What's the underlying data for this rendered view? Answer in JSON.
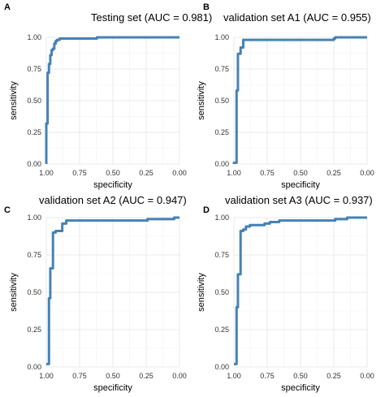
{
  "figure": {
    "background": "#ffffff",
    "line_color": "#4682b4",
    "grid_color": "#e4e4e4"
  },
  "chart_data": [
    {
      "type": "line",
      "panel": "A",
      "title": "Testing set (AUC = 0.981)",
      "xlabel": "specificity",
      "ylabel": "sensitivity",
      "x_reversed": true,
      "xlim": [
        1.0,
        0.0
      ],
      "ylim": [
        0.0,
        1.0
      ],
      "xticks": [
        "1.00",
        "0.75",
        "0.50",
        "0.25",
        "0.00"
      ],
      "yticks": [
        "0.00",
        "0.25",
        "0.50",
        "0.75",
        "1.00"
      ],
      "grid": true,
      "series": [
        {
          "x": [
            1.0,
            1.0,
            0.99,
            0.99,
            0.98,
            0.98,
            0.97,
            0.97,
            0.96,
            0.96,
            0.95,
            0.95,
            0.94,
            0.94,
            0.93,
            0.93,
            0.92,
            0.92,
            0.9,
            0.9,
            0.62,
            0.62,
            0.0
          ],
          "y": [
            0.0,
            0.32,
            0.32,
            0.72,
            0.72,
            0.79,
            0.79,
            0.86,
            0.86,
            0.9,
            0.9,
            0.91,
            0.91,
            0.95,
            0.95,
            0.97,
            0.97,
            0.98,
            0.98,
            0.99,
            0.99,
            1.0,
            1.0
          ]
        }
      ]
    },
    {
      "type": "line",
      "panel": "B",
      "title": "validation set A1 (AUC = 0.955)",
      "xlabel": "specificity",
      "ylabel": "sensitivity",
      "x_reversed": true,
      "xlim": [
        1.0,
        0.0
      ],
      "ylim": [
        0.0,
        1.0
      ],
      "xticks": [
        "1.00",
        "0.75",
        "0.50",
        "0.25",
        "0.00"
      ],
      "yticks": [
        "0.00",
        "0.25",
        "0.50",
        "0.75",
        "1.00"
      ],
      "grid": true,
      "series": [
        {
          "x": [
            1.0,
            1.0,
            0.98,
            0.98,
            0.97,
            0.97,
            0.95,
            0.95,
            0.93,
            0.93,
            0.25,
            0.25,
            0.24,
            0.24,
            0.0
          ],
          "y": [
            0.0,
            0.01,
            0.01,
            0.58,
            0.58,
            0.87,
            0.87,
            0.92,
            0.92,
            0.98,
            0.98,
            0.99,
            0.99,
            1.0,
            1.0
          ]
        }
      ]
    },
    {
      "type": "line",
      "panel": "C",
      "title": "validation set A2 (AUC = 0.947)",
      "xlabel": "specificity",
      "ylabel": "sensitivity",
      "x_reversed": true,
      "xlim": [
        1.0,
        0.0
      ],
      "ylim": [
        0.0,
        1.0
      ],
      "xticks": [
        "1.00",
        "0.75",
        "0.50",
        "0.25",
        "0.00"
      ],
      "yticks": [
        "0.00",
        "0.25",
        "0.50",
        "0.75",
        "1.00"
      ],
      "grid": true,
      "series": [
        {
          "x": [
            1.0,
            0.98,
            0.98,
            0.97,
            0.97,
            0.95,
            0.95,
            0.93,
            0.93,
            0.88,
            0.88,
            0.85,
            0.85,
            0.24,
            0.24,
            0.04,
            0.04,
            0.0
          ],
          "y": [
            0.02,
            0.02,
            0.46,
            0.46,
            0.66,
            0.66,
            0.9,
            0.9,
            0.91,
            0.91,
            0.96,
            0.96,
            0.98,
            0.98,
            0.99,
            0.99,
            1.0,
            1.0
          ]
        }
      ]
    },
    {
      "type": "line",
      "panel": "D",
      "title": "validation set A3 (AUC = 0.937)",
      "xlabel": "specificity",
      "ylabel": "sensitivity",
      "x_reversed": true,
      "xlim": [
        1.0,
        0.0
      ],
      "ylim": [
        0.0,
        1.0
      ],
      "xticks": [
        "1.00",
        "0.75",
        "0.50",
        "0.25",
        "0.00"
      ],
      "yticks": [
        "0.00",
        "0.25",
        "0.50",
        "0.75",
        "1.00"
      ],
      "grid": true,
      "series": [
        {
          "x": [
            1.0,
            0.98,
            0.98,
            0.97,
            0.97,
            0.95,
            0.95,
            0.93,
            0.93,
            0.91,
            0.91,
            0.88,
            0.88,
            0.77,
            0.77,
            0.73,
            0.73,
            0.66,
            0.66,
            0.24,
            0.24,
            0.15,
            0.15,
            0.0
          ],
          "y": [
            0.02,
            0.02,
            0.4,
            0.4,
            0.62,
            0.62,
            0.91,
            0.91,
            0.92,
            0.92,
            0.94,
            0.94,
            0.95,
            0.95,
            0.96,
            0.96,
            0.97,
            0.97,
            0.98,
            0.98,
            0.99,
            0.99,
            1.0,
            1.0
          ]
        }
      ]
    }
  ]
}
